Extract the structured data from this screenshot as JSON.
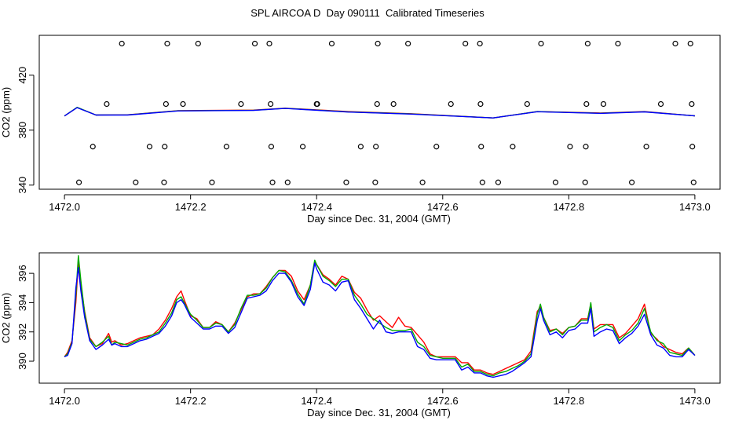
{
  "title": "SPL AIRCOA D  Day 090111  Calibrated Timeseries",
  "chart_data": [
    {
      "type": "line+scatter",
      "xlabel": "Day since Dec. 31, 2004 (GMT)",
      "ylabel": "CO2 (ppm)",
      "xlim": [
        1471.96,
        1473.04
      ],
      "ylim": [
        337,
        449
      ],
      "xticks": [
        1472.0,
        1472.2,
        1472.4,
        1472.6,
        1472.8,
        1473.0
      ],
      "xtick_labels": [
        "1472.0",
        "1472.2",
        "1472.4",
        "1472.6",
        "1472.8",
        "1473.0"
      ],
      "yticks": [
        340,
        380,
        420
      ],
      "ytick_labels": [
        "340",
        "380",
        "420"
      ],
      "series": [
        {
          "name": "red",
          "color": "#ff0000",
          "x": [
            1472.0,
            1472.02,
            1472.05,
            1472.1,
            1472.18,
            1472.3,
            1472.35,
            1472.45,
            1472.55,
            1472.68,
            1472.75,
            1472.85,
            1472.92,
            1473.0
          ],
          "y": [
            390.3,
            396.5,
            391,
            391.2,
            394.2,
            394.6,
            396,
            393.5,
            392,
            388.9,
            393.5,
            392.5,
            393.5,
            390.4
          ]
        },
        {
          "name": "green",
          "color": "#00aa00",
          "x": [
            1472.0,
            1472.02,
            1472.05,
            1472.1,
            1472.18,
            1472.3,
            1472.35,
            1472.45,
            1472.55,
            1472.68,
            1472.75,
            1472.85,
            1472.92,
            1473.0
          ],
          "y": [
            390.3,
            396.6,
            391,
            391.1,
            394.1,
            394.5,
            395.9,
            393.3,
            391.8,
            388.9,
            393.5,
            392.3,
            393.4,
            390.4
          ]
        },
        {
          "name": "blue",
          "color": "#0000ff",
          "x": [
            1472.0,
            1472.02,
            1472.05,
            1472.1,
            1472.18,
            1472.3,
            1472.35,
            1472.45,
            1472.55,
            1472.68,
            1472.75,
            1472.85,
            1472.92,
            1473.0
          ],
          "y": [
            390.3,
            396.4,
            391,
            391,
            394,
            394.4,
            395.8,
            393.2,
            391.7,
            388.9,
            393.4,
            392.2,
            393.3,
            390.4
          ]
        }
      ],
      "points": {
        "marker": "open-circle",
        "x": [
          1472.023,
          1472.045,
          1472.067,
          1472.091,
          1472.113,
          1472.135,
          1472.158,
          1472.159,
          1472.161,
          1472.163,
          1472.188,
          1472.212,
          1472.234,
          1472.257,
          1472.28,
          1472.302,
          1472.325,
          1472.327,
          1472.328,
          1472.33,
          1472.354,
          1472.378,
          1472.4,
          1472.401,
          1472.424,
          1472.447,
          1472.47,
          1472.493,
          1472.494,
          1472.496,
          1472.497,
          1472.522,
          1472.545,
          1472.568,
          1472.59,
          1472.613,
          1472.636,
          1472.659,
          1472.66,
          1472.661,
          1472.663,
          1472.688,
          1472.711,
          1472.734,
          1472.756,
          1472.779,
          1472.802,
          1472.826,
          1472.827,
          1472.828,
          1472.83,
          1472.855,
          1472.878,
          1472.9,
          1472.923,
          1472.946,
          1472.969,
          1472.993,
          1472.995,
          1472.996,
          1472.998
        ],
        "y": [
          342,
          368,
          399,
          443,
          342,
          368,
          342,
          368,
          399,
          443,
          399,
          443,
          342,
          368,
          399,
          443,
          443,
          399,
          368,
          342,
          342,
          368,
          399,
          399,
          443,
          342,
          368,
          342,
          368,
          399,
          443,
          399,
          443,
          342,
          368,
          399,
          443,
          443,
          399,
          368,
          342,
          342,
          368,
          399,
          443,
          342,
          368,
          342,
          368,
          399,
          443,
          399,
          443,
          342,
          368,
          399,
          443,
          443,
          399,
          368,
          342
        ]
      }
    },
    {
      "type": "line",
      "xlabel": "Day since Dec. 31, 2004 (GMT)",
      "ylabel": "CO2 (ppm)",
      "xlim": [
        1471.96,
        1473.04
      ],
      "ylim": [
        388.5,
        397.4
      ],
      "xticks": [
        1472.0,
        1472.2,
        1472.4,
        1472.6,
        1472.8,
        1473.0
      ],
      "xtick_labels": [
        "1472.0",
        "1472.2",
        "1472.4",
        "1472.6",
        "1472.8",
        "1473.0"
      ],
      "yticks": [
        390,
        392,
        394,
        396
      ],
      "ytick_labels": [
        "390",
        "392",
        "394",
        "396"
      ],
      "series": [
        {
          "name": "red",
          "color": "#ff0000",
          "x": [
            1472.0,
            1472.005,
            1472.012,
            1472.018,
            1472.022,
            1472.026,
            1472.032,
            1472.04,
            1472.05,
            1472.06,
            1472.07,
            1472.075,
            1472.08,
            1472.09,
            1472.1,
            1472.11,
            1472.12,
            1472.13,
            1472.14,
            1472.15,
            1472.16,
            1472.17,
            1472.178,
            1472.185,
            1472.19,
            1472.2,
            1472.21,
            1472.22,
            1472.23,
            1472.24,
            1472.25,
            1472.26,
            1472.27,
            1472.28,
            1472.29,
            1472.3,
            1472.31,
            1472.32,
            1472.33,
            1472.34,
            1472.35,
            1472.36,
            1472.37,
            1472.38,
            1472.39,
            1472.397,
            1472.4,
            1472.41,
            1472.42,
            1472.43,
            1472.44,
            1472.45,
            1472.46,
            1472.47,
            1472.48,
            1472.49,
            1472.5,
            1472.51,
            1472.52,
            1472.53,
            1472.54,
            1472.55,
            1472.56,
            1472.57,
            1472.58,
            1472.59,
            1472.6,
            1472.61,
            1472.62,
            1472.63,
            1472.64,
            1472.65,
            1472.66,
            1472.67,
            1472.68,
            1472.69,
            1472.7,
            1472.71,
            1472.72,
            1472.73,
            1472.74,
            1472.75,
            1472.755,
            1472.76,
            1472.77,
            1472.78,
            1472.79,
            1472.8,
            1472.81,
            1472.82,
            1472.83,
            1472.835,
            1472.84,
            1472.85,
            1472.86,
            1472.87,
            1472.88,
            1472.89,
            1472.9,
            1472.91,
            1472.92,
            1472.93,
            1472.94,
            1472.95,
            1472.96,
            1472.97,
            1472.98,
            1472.99,
            1473.0
          ],
          "y": [
            390.3,
            390.6,
            391.4,
            394,
            396.8,
            395.2,
            393.4,
            391.6,
            391,
            391.2,
            391.9,
            391.3,
            391.4,
            391.1,
            391.2,
            391.4,
            391.6,
            391.7,
            391.8,
            392.2,
            392.8,
            393.6,
            394.4,
            394.8,
            394.2,
            393.1,
            392.9,
            392.3,
            392.3,
            392.7,
            392.5,
            392,
            392.6,
            393.5,
            394.4,
            394.6,
            394.6,
            395.1,
            395.7,
            396.2,
            396.2,
            395.8,
            394.8,
            394.2,
            395.2,
            396.8,
            396.6,
            395.9,
            395.6,
            395.2,
            395.8,
            395.6,
            394.7,
            394.3,
            393.5,
            392.8,
            393.1,
            392.7,
            392.3,
            393,
            392.4,
            392.3,
            391.8,
            391.3,
            390.5,
            390.3,
            390.3,
            390.3,
            390.3,
            389.9,
            389.9,
            389.4,
            389.4,
            389.2,
            389.1,
            389.3,
            389.5,
            389.7,
            389.9,
            390.1,
            390.7,
            393.4,
            393.7,
            393,
            392.1,
            392.2,
            391.9,
            392.3,
            392.4,
            392.9,
            392.9,
            393.9,
            392.2,
            392.5,
            392.5,
            392.5,
            391.6,
            391.9,
            392.4,
            392.9,
            393.9,
            391.9,
            391.5,
            391,
            390.8,
            390.6,
            390.5,
            390.9,
            390.4
          ]
        },
        {
          "name": "green",
          "color": "#00aa00",
          "x": [
            1472.0,
            1472.005,
            1472.012,
            1472.018,
            1472.022,
            1472.026,
            1472.032,
            1472.04,
            1472.05,
            1472.06,
            1472.07,
            1472.075,
            1472.08,
            1472.09,
            1472.1,
            1472.11,
            1472.12,
            1472.13,
            1472.14,
            1472.15,
            1472.16,
            1472.17,
            1472.178,
            1472.185,
            1472.19,
            1472.2,
            1472.21,
            1472.22,
            1472.23,
            1472.24,
            1472.25,
            1472.26,
            1472.27,
            1472.28,
            1472.29,
            1472.3,
            1472.31,
            1472.32,
            1472.33,
            1472.34,
            1472.35,
            1472.36,
            1472.37,
            1472.38,
            1472.39,
            1472.397,
            1472.4,
            1472.41,
            1472.42,
            1472.43,
            1472.44,
            1472.45,
            1472.46,
            1472.47,
            1472.48,
            1472.49,
            1472.5,
            1472.51,
            1472.52,
            1472.53,
            1472.54,
            1472.55,
            1472.56,
            1472.57,
            1472.58,
            1472.59,
            1472.6,
            1472.61,
            1472.62,
            1472.63,
            1472.64,
            1472.65,
            1472.66,
            1472.67,
            1472.68,
            1472.69,
            1472.7,
            1472.71,
            1472.72,
            1472.73,
            1472.74,
            1472.75,
            1472.755,
            1472.76,
            1472.77,
            1472.78,
            1472.79,
            1472.8,
            1472.81,
            1472.82,
            1472.83,
            1472.835,
            1472.84,
            1472.85,
            1472.86,
            1472.87,
            1472.88,
            1472.89,
            1472.9,
            1472.91,
            1472.92,
            1472.93,
            1472.94,
            1472.95,
            1472.96,
            1472.97,
            1472.98,
            1472.99,
            1473.0
          ],
          "y": [
            390.3,
            390.5,
            391.3,
            394.5,
            397.2,
            395.5,
            393.3,
            391.5,
            391,
            391.3,
            391.7,
            391.1,
            391.3,
            391.2,
            391.1,
            391.3,
            391.5,
            391.6,
            391.8,
            392,
            392.6,
            393.3,
            394.2,
            394.4,
            394,
            393.2,
            392.8,
            392.3,
            392.3,
            392.6,
            392.5,
            392,
            392.5,
            393.6,
            394.5,
            394.5,
            394.6,
            395,
            395.7,
            396.2,
            396.1,
            395.5,
            394.6,
            393.9,
            395.2,
            396.9,
            396.6,
            395.8,
            395.5,
            395.1,
            395.6,
            395.6,
            394.5,
            393.9,
            393.2,
            392.9,
            392.6,
            392.3,
            392.1,
            392.1,
            392.1,
            392.2,
            391.3,
            391,
            390.4,
            390.3,
            390.2,
            390.2,
            390.2,
            389.6,
            389.8,
            389.3,
            389.3,
            389.1,
            389,
            389.2,
            389.3,
            389.5,
            389.7,
            390,
            390.5,
            393.2,
            393.9,
            393,
            392,
            392.2,
            391.8,
            392.3,
            392.4,
            392.8,
            392.8,
            394,
            392,
            392.3,
            392.5,
            392.3,
            391.4,
            391.8,
            392.1,
            392.6,
            393.6,
            392,
            391.4,
            391.2,
            390.6,
            390.5,
            390.4,
            390.9,
            390.4
          ]
        },
        {
          "name": "blue",
          "color": "#0000ff",
          "x": [
            1472.0,
            1472.005,
            1472.012,
            1472.018,
            1472.022,
            1472.026,
            1472.032,
            1472.04,
            1472.05,
            1472.06,
            1472.07,
            1472.075,
            1472.08,
            1472.09,
            1472.1,
            1472.11,
            1472.12,
            1472.13,
            1472.14,
            1472.15,
            1472.16,
            1472.17,
            1472.178,
            1472.185,
            1472.19,
            1472.2,
            1472.21,
            1472.22,
            1472.23,
            1472.24,
            1472.25,
            1472.26,
            1472.27,
            1472.28,
            1472.29,
            1472.3,
            1472.31,
            1472.32,
            1472.33,
            1472.34,
            1472.35,
            1472.36,
            1472.37,
            1472.38,
            1472.39,
            1472.397,
            1472.4,
            1472.41,
            1472.42,
            1472.43,
            1472.44,
            1472.45,
            1472.46,
            1472.47,
            1472.48,
            1472.49,
            1472.5,
            1472.51,
            1472.52,
            1472.53,
            1472.54,
            1472.55,
            1472.56,
            1472.57,
            1472.58,
            1472.59,
            1472.6,
            1472.61,
            1472.62,
            1472.63,
            1472.64,
            1472.65,
            1472.66,
            1472.67,
            1472.68,
            1472.69,
            1472.7,
            1472.71,
            1472.72,
            1472.73,
            1472.74,
            1472.75,
            1472.755,
            1472.76,
            1472.77,
            1472.78,
            1472.79,
            1472.8,
            1472.81,
            1472.82,
            1472.83,
            1472.835,
            1472.84,
            1472.85,
            1472.86,
            1472.87,
            1472.88,
            1472.89,
            1472.9,
            1472.91,
            1472.92,
            1472.93,
            1472.94,
            1472.95,
            1472.96,
            1472.97,
            1472.98,
            1472.99,
            1473.0
          ],
          "y": [
            390.3,
            390.4,
            391.2,
            395,
            396.4,
            394.8,
            393,
            391.4,
            390.8,
            391.1,
            391.5,
            391.1,
            391.2,
            391,
            391,
            391.2,
            391.4,
            391.5,
            391.7,
            391.9,
            392.4,
            393.1,
            394,
            394.2,
            393.9,
            393,
            392.6,
            392.2,
            392.2,
            392.4,
            392.4,
            391.9,
            392.3,
            393.3,
            394.3,
            394.4,
            394.5,
            394.8,
            395.5,
            396,
            396,
            395.4,
            394.4,
            393.8,
            394.9,
            396.7,
            396.3,
            395.4,
            395.2,
            394.8,
            395.4,
            395.5,
            394.2,
            393.6,
            392.9,
            392.2,
            392.8,
            392,
            391.9,
            392,
            392,
            392,
            391,
            390.8,
            390.2,
            390.1,
            390.1,
            390.1,
            390.1,
            389.4,
            389.6,
            389.2,
            389.2,
            389,
            388.9,
            389,
            389.1,
            389.3,
            389.6,
            389.9,
            390.3,
            392.8,
            393.6,
            392.8,
            391.8,
            392,
            391.6,
            392.1,
            392.2,
            392.6,
            392.6,
            393.6,
            391.7,
            392,
            392.2,
            392.1,
            391.2,
            391.6,
            391.9,
            392.4,
            393.2,
            391.8,
            391.1,
            390.9,
            390.4,
            390.3,
            390.3,
            390.8,
            390.4
          ]
        }
      ]
    }
  ]
}
